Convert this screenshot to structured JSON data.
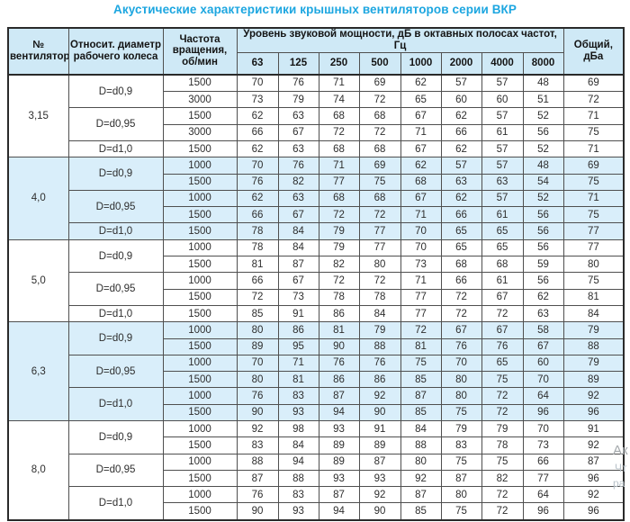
{
  "title": "Акустические характеристики крышных вентиляторов серии ВКР",
  "colors": {
    "title_accent": "#1ca6e0",
    "header_bg": "#cfe9f6",
    "band_bg": "#d9eefa",
    "border": "#4f4f4f",
    "outer_border": "#2a2a2a",
    "text": "#2e2e2e",
    "watermark": "#b0b8bd"
  },
  "watermark": {
    "fragments": [
      "Ак",
      "Чт",
      "ра"
    ]
  },
  "table": {
    "headers": {
      "fan_no": "№ вентилятора",
      "diameter": "Относит. диаметр рабочего колеса",
      "speed": "Частота вращения, об/мин",
      "spl_group": "Уровень звуковой мощности, дБ в октавных полосах частот, Гц",
      "freqs": [
        "63",
        "125",
        "250",
        "500",
        "1000",
        "2000",
        "4000",
        "8000"
      ],
      "total": "Общий, дБа"
    },
    "groups": [
      {
        "fan": "3,15",
        "shaded": false,
        "subgroups": [
          {
            "diameter": "D=d0,9",
            "rows": [
              {
                "rpm": "1500",
                "levels": [
                  70,
                  76,
                  71,
                  69,
                  62,
                  57,
                  57,
                  48
                ],
                "total": 69
              },
              {
                "rpm": "3000",
                "levels": [
                  73,
                  79,
                  74,
                  72,
                  65,
                  60,
                  60,
                  51
                ],
                "total": 72
              }
            ]
          },
          {
            "diameter": "D=d0,95",
            "rows": [
              {
                "rpm": "1500",
                "levels": [
                  62,
                  63,
                  68,
                  68,
                  67,
                  62,
                  57,
                  52
                ],
                "total": 71
              },
              {
                "rpm": "3000",
                "levels": [
                  66,
                  67,
                  72,
                  72,
                  71,
                  66,
                  61,
                  56
                ],
                "total": 75
              }
            ]
          },
          {
            "diameter": "D=d1,0",
            "rows": [
              {
                "rpm": "1500",
                "levels": [
                  62,
                  63,
                  68,
                  68,
                  67,
                  62,
                  57,
                  52
                ],
                "total": 71
              }
            ]
          }
        ]
      },
      {
        "fan": "4,0",
        "shaded": true,
        "subgroups": [
          {
            "diameter": "D=d0,9",
            "rows": [
              {
                "rpm": "1000",
                "levels": [
                  70,
                  76,
                  71,
                  69,
                  62,
                  57,
                  57,
                  48
                ],
                "total": 69
              },
              {
                "rpm": "1500",
                "levels": [
                  76,
                  82,
                  77,
                  75,
                  68,
                  63,
                  63,
                  54
                ],
                "total": 75
              }
            ]
          },
          {
            "diameter": "D=d0,95",
            "rows": [
              {
                "rpm": "1000",
                "levels": [
                  62,
                  63,
                  68,
                  68,
                  67,
                  62,
                  57,
                  52
                ],
                "total": 71
              },
              {
                "rpm": "1500",
                "levels": [
                  66,
                  67,
                  72,
                  72,
                  71,
                  66,
                  61,
                  56
                ],
                "total": 75
              }
            ]
          },
          {
            "diameter": "D=d1,0",
            "rows": [
              {
                "rpm": "1500",
                "levels": [
                  78,
                  84,
                  79,
                  77,
                  70,
                  65,
                  65,
                  56
                ],
                "total": 77
              }
            ]
          }
        ]
      },
      {
        "fan": "5,0",
        "shaded": false,
        "subgroups": [
          {
            "diameter": "D=d0,9",
            "rows": [
              {
                "rpm": "1000",
                "levels": [
                  78,
                  84,
                  79,
                  77,
                  70,
                  65,
                  65,
                  56
                ],
                "total": 77
              },
              {
                "rpm": "1500",
                "levels": [
                  81,
                  87,
                  82,
                  80,
                  73,
                  68,
                  68,
                  59
                ],
                "total": 80
              }
            ]
          },
          {
            "diameter": "D=d0,95",
            "rows": [
              {
                "rpm": "1000",
                "levels": [
                  66,
                  67,
                  72,
                  72,
                  71,
                  66,
                  61,
                  56
                ],
                "total": 75
              },
              {
                "rpm": "1500",
                "levels": [
                  72,
                  73,
                  78,
                  78,
                  77,
                  72,
                  67,
                  62
                ],
                "total": 81
              }
            ]
          },
          {
            "diameter": "D=d1,0",
            "rows": [
              {
                "rpm": "1500",
                "levels": [
                  85,
                  91,
                  86,
                  84,
                  77,
                  72,
                  72,
                  63
                ],
                "total": 84
              }
            ]
          }
        ]
      },
      {
        "fan": "6,3",
        "shaded": true,
        "subgroups": [
          {
            "diameter": "D=d0,9",
            "rows": [
              {
                "rpm": "1000",
                "levels": [
                  80,
                  86,
                  81,
                  79,
                  72,
                  67,
                  67,
                  58
                ],
                "total": 79
              },
              {
                "rpm": "1500",
                "levels": [
                  89,
                  95,
                  90,
                  88,
                  81,
                  76,
                  76,
                  67
                ],
                "total": 88
              }
            ]
          },
          {
            "diameter": "D=d0,95",
            "rows": [
              {
                "rpm": "1000",
                "levels": [
                  70,
                  71,
                  76,
                  76,
                  75,
                  70,
                  65,
                  60
                ],
                "total": 79
              },
              {
                "rpm": "1500",
                "levels": [
                  80,
                  81,
                  86,
                  86,
                  85,
                  80,
                  75,
                  70
                ],
                "total": 89
              }
            ]
          },
          {
            "diameter": "D=d1,0",
            "rows": [
              {
                "rpm": "1000",
                "levels": [
                  76,
                  83,
                  87,
                  92,
                  87,
                  80,
                  72,
                  64
                ],
                "total": 92
              },
              {
                "rpm": "1500",
                "levels": [
                  90,
                  93,
                  94,
                  90,
                  85,
                  75,
                  72,
                  96
                ],
                "total": 96
              }
            ]
          }
        ]
      },
      {
        "fan": "8,0",
        "shaded": false,
        "subgroups": [
          {
            "diameter": "D=d0,9",
            "rows": [
              {
                "rpm": "1000",
                "levels": [
                  92,
                  98,
                  93,
                  91,
                  84,
                  79,
                  79,
                  70
                ],
                "total": 91
              },
              {
                "rpm": "1500",
                "levels": [
                  83,
                  84,
                  89,
                  89,
                  88,
                  83,
                  78,
                  73
                ],
                "total": 92
              }
            ]
          },
          {
            "diameter": "D=d0,95",
            "rows": [
              {
                "rpm": "1000",
                "levels": [
                  88,
                  94,
                  89,
                  87,
                  80,
                  75,
                  75,
                  66
                ],
                "total": 87
              },
              {
                "rpm": "1500",
                "levels": [
                  87,
                  88,
                  93,
                  93,
                  92,
                  87,
                  82,
                  77
                ],
                "total": 96
              }
            ]
          },
          {
            "diameter": "D=d1,0",
            "rows": [
              {
                "rpm": "1000",
                "levels": [
                  76,
                  83,
                  87,
                  92,
                  87,
                  80,
                  72,
                  64
                ],
                "total": 92
              },
              {
                "rpm": "1500",
                "levels": [
                  90,
                  93,
                  94,
                  90,
                  85,
                  75,
                  72,
                  96
                ],
                "total": 96
              }
            ]
          }
        ]
      }
    ]
  }
}
